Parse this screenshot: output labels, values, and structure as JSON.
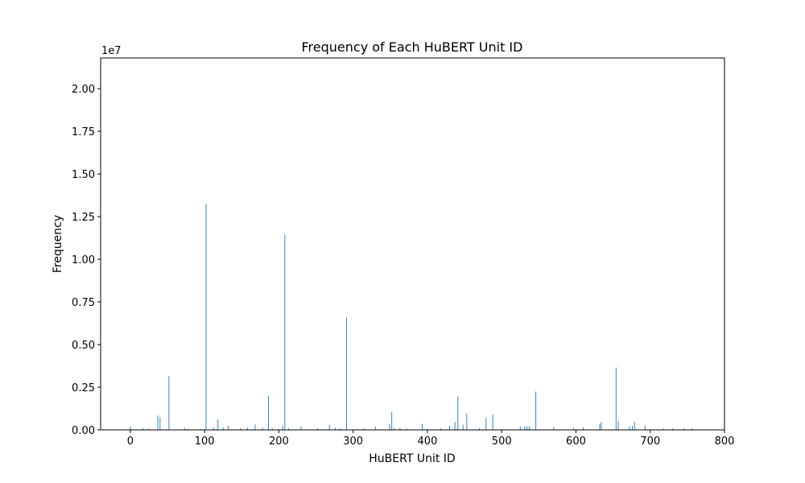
{
  "chart_data": {
    "type": "bar",
    "title": "Frequency of Each HuBERT Unit ID",
    "xlabel": "HuBERT Unit ID",
    "ylabel": "Frequency",
    "y_offset_label": "1e7",
    "xlim": [
      -40,
      800
    ],
    "ylim": [
      0,
      21800000.0
    ],
    "x_ticks": [
      0,
      100,
      200,
      300,
      400,
      500,
      600,
      700,
      800
    ],
    "y_ticks": [
      0,
      2500000,
      5000000,
      7500000,
      10000000,
      12500000,
      15000000,
      17500000,
      20000000
    ],
    "x_tick_labels": [
      "0",
      "100",
      "200",
      "300",
      "400",
      "500",
      "600",
      "700",
      "800"
    ],
    "y_tick_labels": [
      "0.00",
      "0.25",
      "0.50",
      "0.75",
      "1.00",
      "1.25",
      "1.50",
      "1.75",
      "2.00"
    ],
    "grid": false,
    "bar_color": "#1f77b4",
    "x": [
      0,
      17,
      25,
      37,
      40,
      52,
      73,
      78,
      95,
      102,
      112,
      118,
      125,
      132,
      148,
      158,
      168,
      178,
      186,
      191,
      205,
      208,
      213,
      230,
      252,
      268,
      276,
      283,
      291,
      315,
      330,
      349,
      352,
      355,
      363,
      372,
      393,
      418,
      430,
      437,
      441,
      448,
      453,
      470,
      479,
      488,
      525,
      531,
      534,
      537,
      546,
      570,
      597,
      610,
      632,
      634,
      654,
      657,
      672,
      676,
      679,
      693,
      718,
      730,
      745,
      756
    ],
    "values": [
      200000,
      100000,
      80000,
      850000,
      750000,
      3150000,
      120000,
      50000,
      60000,
      13250000,
      120000,
      620000,
      150000,
      250000,
      100000,
      150000,
      320000,
      120000,
      2000000,
      100000,
      250000,
      11450000,
      100000,
      200000,
      80000,
      300000,
      120000,
      80000,
      6600000,
      80000,
      180000,
      350000,
      1050000,
      120000,
      120000,
      80000,
      350000,
      80000,
      250000,
      450000,
      1950000,
      300000,
      950000,
      100000,
      700000,
      900000,
      200000,
      200000,
      200000,
      200000,
      2250000,
      150000,
      120000,
      150000,
      350000,
      450000,
      3650000,
      500000,
      200000,
      250000,
      450000,
      250000,
      80000,
      80000,
      80000,
      80000
    ]
  }
}
